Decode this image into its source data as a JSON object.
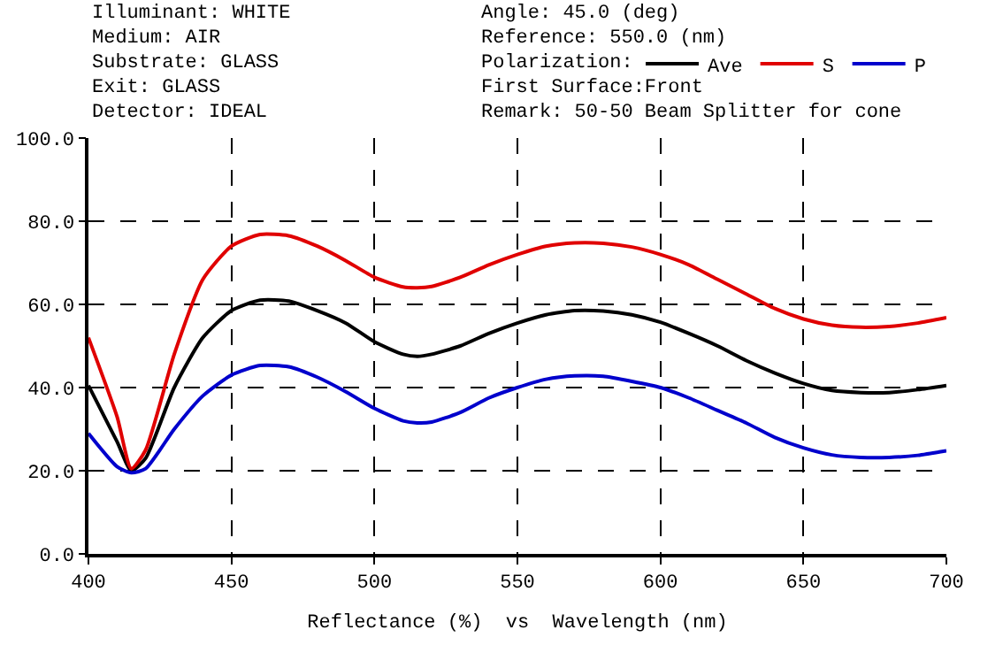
{
  "chart_data": {
    "type": "line",
    "xlabel": "Reflectance (%)  vs  Wavelength (nm)",
    "x": [
      400,
      410,
      415,
      420,
      430,
      440,
      450,
      460,
      470,
      480,
      490,
      500,
      510,
      515,
      520,
      530,
      540,
      550,
      560,
      570,
      580,
      590,
      600,
      610,
      620,
      630,
      640,
      650,
      660,
      670,
      680,
      690,
      700
    ],
    "series": [
      {
        "name": "Ave",
        "color": "#000000",
        "values": [
          40.5,
          27,
          20,
          23,
          40,
          52,
          58.5,
          61,
          60.8,
          58.5,
          55.5,
          51,
          48,
          47.5,
          48,
          50,
          53,
          55.5,
          57.5,
          58.5,
          58.4,
          57.5,
          55.7,
          53,
          50,
          46.5,
          43.5,
          41,
          39.3,
          38.8,
          38.8,
          39.5,
          40.5
        ]
      },
      {
        "name": "S",
        "color": "#e00000",
        "values": [
          52,
          33,
          20.5,
          25,
          48,
          66,
          74,
          76.8,
          76.5,
          74,
          70.5,
          66.5,
          64.2,
          64,
          64.3,
          66.5,
          69.5,
          72,
          74,
          74.8,
          74.7,
          73.8,
          72,
          69.5,
          66,
          62.5,
          59,
          56.5,
          55,
          54.5,
          54.7,
          55.5,
          56.8
        ]
      },
      {
        "name": "P",
        "color": "#0000cc",
        "values": [
          29,
          21,
          19.5,
          20.5,
          30,
          38,
          43,
          45.3,
          45,
          42.5,
          39,
          35,
          32,
          31.5,
          31.7,
          34,
          37.5,
          40,
          42,
          42.8,
          42.7,
          41.5,
          40,
          37.5,
          34.5,
          31.5,
          28,
          25.5,
          23.8,
          23.2,
          23.2,
          23.7,
          24.8
        ]
      }
    ],
    "xlim": [
      400,
      700
    ],
    "xticks": [
      400,
      450,
      500,
      550,
      600,
      650,
      700
    ],
    "ylim": [
      0,
      100
    ],
    "yticks": [
      {
        "value": 0,
        "label": "0.0"
      },
      {
        "value": 20,
        "label": "20.0"
      },
      {
        "value": 40,
        "label": "40.0"
      },
      {
        "value": 60,
        "label": "60.0"
      },
      {
        "value": 80,
        "label": "80.0"
      },
      {
        "value": 100,
        "label": "100.0"
      }
    ],
    "grid": true,
    "legend": "top",
    "marker": "none",
    "line_style": "solid",
    "annotations": [
      "Illuminant: WHITE",
      "Medium: AIR",
      "Substrate: GLASS",
      "Exit: GLASS",
      "Detector: IDEAL",
      "Angle: 45.0 (deg)",
      "Reference: 550.0 (nm)",
      "Polarization:",
      "First Surface:Front",
      "Remark: 50-50 Beam Splitter for cone"
    ]
  }
}
